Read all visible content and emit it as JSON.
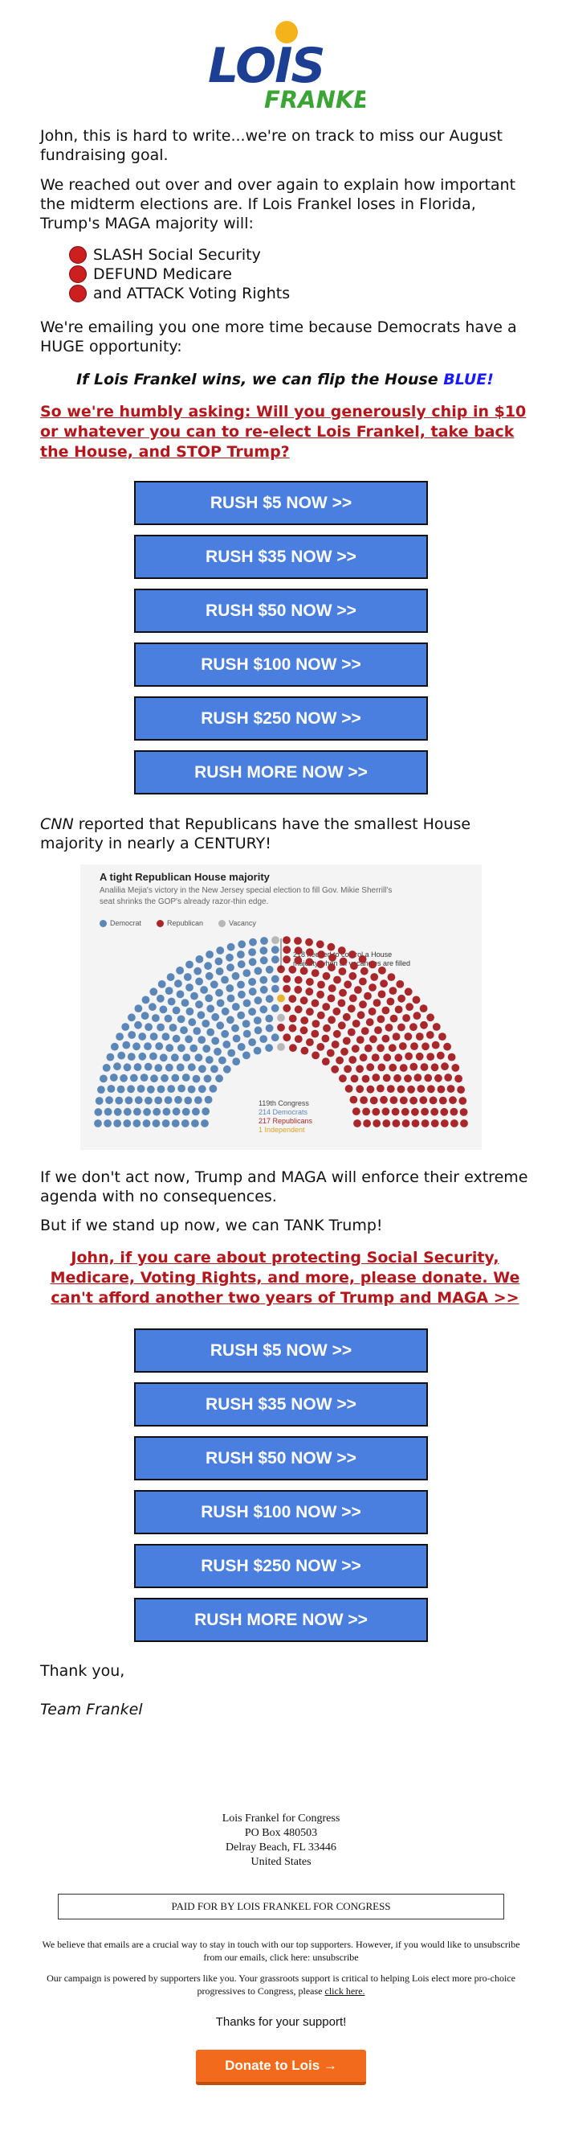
{
  "logo": {
    "first": "LOIS",
    "last": "FRANKEL"
  },
  "intro": "John, this is hard to write...we're on track to miss our August fundraising goal.",
  "p2": "We reached out over and over again to explain how important the midterm elections are. If Lois Frankel loses in Florida, Trump's MAGA majority will:",
  "bullets": [
    "SLASH Social Security",
    "DEFUND Medicare",
    "and ATTACK Voting Rights"
  ],
  "p3": "We're emailing you one more time because Democrats have a HUGE opportunity:",
  "flip": {
    "text": "If Lois Frankel wins, we can flip the House ",
    "blue": "BLUE!"
  },
  "ask1": "So we're humbly asking: Will you generously chip in $10 or whatever you can to re-elect Lois Frankel, take back the House, and STOP Trump?",
  "buttons1": [
    "RUSH $5 NOW >>",
    "RUSH $35 NOW >>",
    "RUSH $50 NOW >>",
    "RUSH $100 NOW >>",
    "RUSH $250 NOW >>",
    "RUSH MORE NOW >>"
  ],
  "cnn": {
    "source": "CNN",
    "text": " reported that Republicans have the smallest House majority in nearly a CENTURY!"
  },
  "chart_data": {
    "type": "hemicycle",
    "title": "A tight Republican House majority",
    "subtitle": "Analilia Mejia's victory in the New Jersey special election to fill Gov. Mikie Sherrill's seat shrinks the GOP's already razor-thin edge.",
    "legend": [
      "Democrat",
      "Republican",
      "Vacancy"
    ],
    "annotation": "218 needed to control a House majority when all vacancies are filled",
    "congress": "119th Congress",
    "counts_text": [
      "214 Democrats",
      "217 Republicans",
      "1 Independent"
    ],
    "seats": {
      "Democrat": 214,
      "Republican": 217,
      "Independent": 1,
      "Vacancy": 3
    },
    "colors": {
      "Democrat": "#5b87b8",
      "Republican": "#a8272b",
      "Independent": "#e8b430",
      "Vacancy": "#b7b7b7"
    }
  },
  "p5": "If we don't act now, Trump and MAGA will enforce their extreme agenda with no consequences.",
  "p6": "But if we stand up now, we can TANK Trump!",
  "ask2": "John, if you care about protecting Social Security, Medicare, Voting Rights, and more, please donate. We can't afford another two years of Trump and MAGA >>",
  "buttons2": [
    "RUSH $5 NOW >>",
    "RUSH $35 NOW >>",
    "RUSH $50 NOW >>",
    "RUSH $100 NOW >>",
    "RUSH $250 NOW >>",
    "RUSH MORE NOW >>"
  ],
  "signoff": "Thank you,",
  "signature": "Team Frankel",
  "footer": {
    "org": "Lois Frankel for Congress",
    "box": "PO Box 480503",
    "city": "Delray Beach, FL 33446",
    "country": "United States",
    "paid": "PAID FOR BY LOIS FRANKEL FOR CONGRESS",
    "unsub_text": "We believe that emails are a crucial way to stay in touch with our top supporters. However, if you would like to unsubscribe from our emails, click here: ",
    "unsub_link": "unsubscribe",
    "power_text": "Our campaign is powered by supporters like you. Your grassroots support is critical to helping Lois elect more pro-choice progressives to Congress, please ",
    "power_link": "click here.",
    "thanks": "Thanks for your support!",
    "donate": "Donate to Lois →"
  }
}
